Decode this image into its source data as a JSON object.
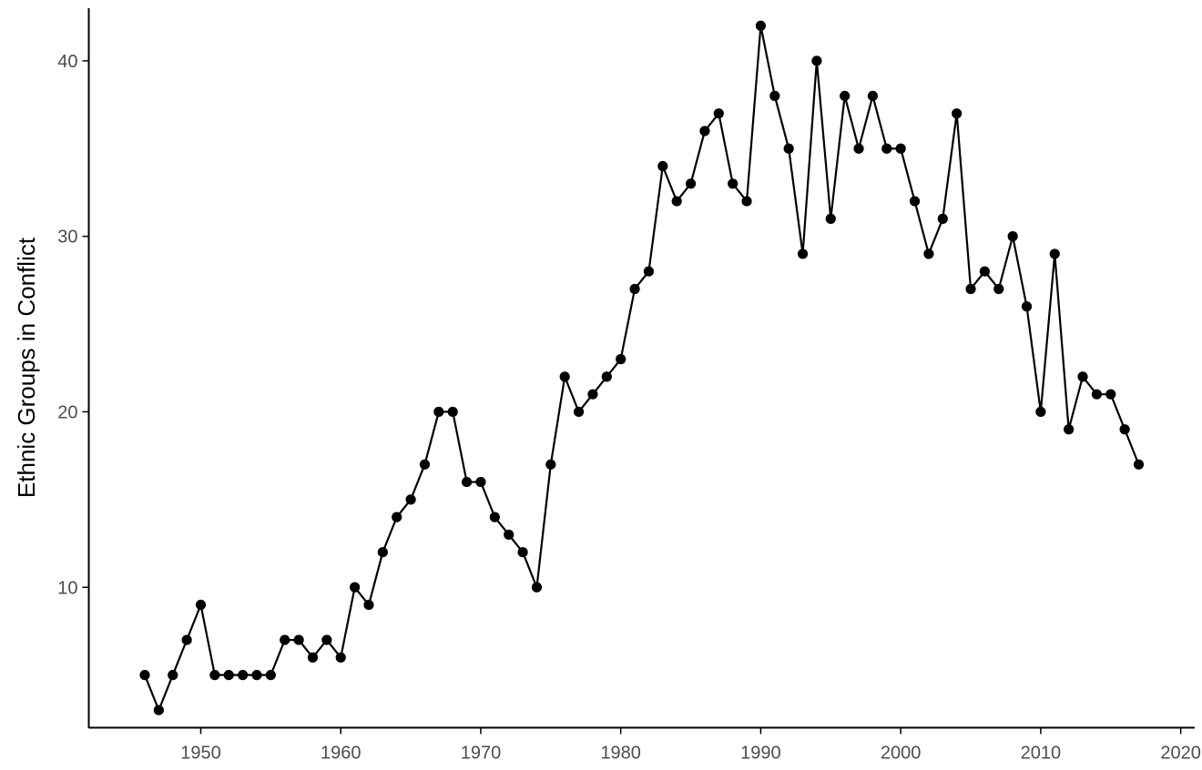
{
  "chart_data": {
    "type": "line",
    "title": "",
    "xlabel": "",
    "ylabel": "Ethnic Groups in Conflict",
    "xlim": [
      1942,
      2021
    ],
    "ylim": [
      2,
      43
    ],
    "x_ticks": [
      1950,
      1960,
      1970,
      1980,
      1990,
      2000,
      2010,
      2020
    ],
    "x_tick_labels": [
      "1950",
      "1960",
      "1970",
      "1980",
      "1990",
      "2000",
      "2010",
      "2020"
    ],
    "y_ticks": [
      10,
      20,
      30,
      40
    ],
    "y_tick_labels": [
      "10",
      "20",
      "30",
      "40"
    ],
    "grid": false,
    "markers": true,
    "colors": {
      "series": "#000000",
      "axis": "#000000",
      "tick_text": "#4d4d4d"
    },
    "series": [
      {
        "x": [
          1946,
          1947,
          1948,
          1949,
          1950,
          1951,
          1952,
          1953,
          1954,
          1955,
          1956,
          1957,
          1958,
          1959,
          1960,
          1961,
          1962,
          1963,
          1964,
          1965,
          1966,
          1967,
          1968,
          1969,
          1970,
          1971,
          1972,
          1973,
          1974,
          1975,
          1976,
          1977,
          1978,
          1979,
          1980,
          1981,
          1982,
          1983,
          1984,
          1985,
          1986,
          1987,
          1988,
          1989,
          1990,
          1991,
          1992,
          1993,
          1994,
          1995,
          1996,
          1997,
          1998,
          1999,
          2000,
          2001,
          2002,
          2003,
          2004,
          2005,
          2006,
          2007,
          2008,
          2009,
          2010,
          2011,
          2012,
          2013,
          2014,
          2015,
          2016,
          2017
        ],
        "y": [
          5,
          3,
          5,
          7,
          9,
          5,
          5,
          5,
          5,
          5,
          7,
          7,
          6,
          7,
          6,
          10,
          9,
          12,
          14,
          15,
          17,
          20,
          20,
          16,
          16,
          14,
          13,
          12,
          10,
          17,
          22,
          20,
          21,
          22,
          23,
          27,
          28,
          34,
          32,
          33,
          36,
          37,
          33,
          32,
          42,
          38,
          35,
          29,
          40,
          31,
          38,
          35,
          38,
          35,
          35,
          32,
          29,
          31,
          37,
          27,
          28,
          27,
          30,
          26,
          20,
          29,
          19,
          22,
          21,
          21,
          19,
          17
        ]
      }
    ]
  }
}
